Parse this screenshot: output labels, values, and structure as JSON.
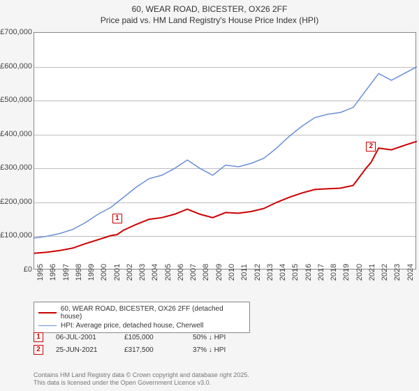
{
  "title": {
    "line1": "60, WEAR ROAD, BICESTER, OX26 2FF",
    "line2": "Price paid vs. HM Land Registry's House Price Index (HPI)"
  },
  "chart": {
    "type": "line",
    "background_color": "#ffffff",
    "grid_color": "#bdbdbd",
    "plot_border_color": "#888888",
    "ylim": [
      0,
      700000
    ],
    "ytick_step": 100000,
    "ytick_labels": [
      "£0",
      "£100,000",
      "£200,000",
      "£300,000",
      "£400,000",
      "£500,000",
      "£600,000",
      "£700,000"
    ],
    "xlim": [
      1995,
      2025
    ],
    "xticks": [
      1995,
      1996,
      1997,
      1998,
      1999,
      2000,
      2001,
      2002,
      2003,
      2004,
      2005,
      2006,
      2007,
      2008,
      2009,
      2010,
      2011,
      2012,
      2013,
      2014,
      2015,
      2016,
      2017,
      2018,
      2019,
      2020,
      2021,
      2022,
      2023,
      2024,
      2025
    ],
    "series": [
      {
        "name": "HPI: Average price, detached house, Cherwell",
        "color": "#6a8fd6",
        "width": 1.5,
        "data": [
          [
            1995,
            95000
          ],
          [
            1996,
            100000
          ],
          [
            1997,
            108000
          ],
          [
            1998,
            120000
          ],
          [
            1999,
            140000
          ],
          [
            2000,
            165000
          ],
          [
            2001,
            185000
          ],
          [
            2002,
            215000
          ],
          [
            2003,
            245000
          ],
          [
            2004,
            270000
          ],
          [
            2005,
            280000
          ],
          [
            2006,
            300000
          ],
          [
            2007,
            325000
          ],
          [
            2008,
            300000
          ],
          [
            2009,
            280000
          ],
          [
            2010,
            310000
          ],
          [
            2011,
            305000
          ],
          [
            2012,
            315000
          ],
          [
            2013,
            330000
          ],
          [
            2014,
            360000
          ],
          [
            2015,
            395000
          ],
          [
            2016,
            425000
          ],
          [
            2017,
            450000
          ],
          [
            2018,
            460000
          ],
          [
            2019,
            465000
          ],
          [
            2020,
            480000
          ],
          [
            2021,
            530000
          ],
          [
            2022,
            580000
          ],
          [
            2023,
            560000
          ],
          [
            2024,
            580000
          ],
          [
            2025,
            600000
          ]
        ]
      },
      {
        "name": "60, WEAR ROAD, BICESTER, OX26 2FF (detached house)",
        "color": "#cc0000",
        "width": 2,
        "data": [
          [
            1995,
            50000
          ],
          [
            1996,
            53000
          ],
          [
            1997,
            58000
          ],
          [
            1998,
            65000
          ],
          [
            1999,
            78000
          ],
          [
            2000,
            90000
          ],
          [
            2001,
            102000
          ],
          [
            2001.5,
            105000
          ],
          [
            2002,
            118000
          ],
          [
            2003,
            135000
          ],
          [
            2004,
            150000
          ],
          [
            2005,
            155000
          ],
          [
            2006,
            165000
          ],
          [
            2007,
            180000
          ],
          [
            2008,
            165000
          ],
          [
            2009,
            155000
          ],
          [
            2010,
            170000
          ],
          [
            2011,
            168000
          ],
          [
            2012,
            173000
          ],
          [
            2013,
            182000
          ],
          [
            2014,
            200000
          ],
          [
            2015,
            215000
          ],
          [
            2016,
            228000
          ],
          [
            2017,
            238000
          ],
          [
            2018,
            240000
          ],
          [
            2019,
            242000
          ],
          [
            2020,
            250000
          ],
          [
            2021,
            300000
          ],
          [
            2021.4,
            317500
          ],
          [
            2022,
            360000
          ],
          [
            2023,
            355000
          ],
          [
            2024,
            368000
          ],
          [
            2025,
            380000
          ]
        ]
      }
    ],
    "markers": [
      {
        "id": "1",
        "x": 2001.5,
        "y": 105000,
        "color": "#cc0000"
      },
      {
        "id": "2",
        "x": 2021.4,
        "y": 317500,
        "color": "#cc0000"
      }
    ]
  },
  "legend": {
    "items": [
      {
        "label": "60, WEAR ROAD, BICESTER, OX26 2FF (detached house)",
        "color": "#cc0000",
        "width": 2
      },
      {
        "label": "HPI: Average price, detached house, Cherwell",
        "color": "#6a8fd6",
        "width": 1.5
      }
    ]
  },
  "sales": [
    {
      "marker": "1",
      "marker_color": "#cc0000",
      "date": "06-JUL-2001",
      "price": "£105,000",
      "diff": "50% ↓ HPI"
    },
    {
      "marker": "2",
      "marker_color": "#cc0000",
      "date": "25-JUN-2021",
      "price": "£317,500",
      "diff": "37% ↓ HPI"
    }
  ],
  "license": {
    "line1": "Contains HM Land Registry data © Crown copyright and database right 2025.",
    "line2": "This data is licensed under the Open Government Licence v3.0."
  }
}
